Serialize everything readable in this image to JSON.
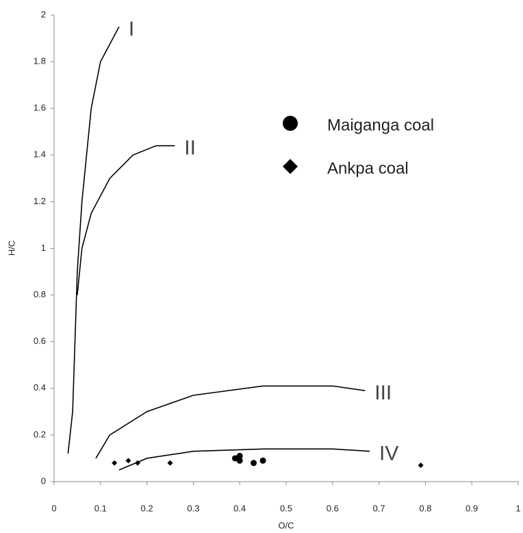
{
  "chart_data": {
    "type": "scatter",
    "x_label": "O/C",
    "y_label": "H/C",
    "xlim": [
      0,
      1
    ],
    "xticks": [
      0,
      0.1,
      0.2,
      0.3,
      0.4,
      0.5,
      0.6,
      0.7,
      0.8,
      0.9,
      1
    ],
    "ylim": [
      0,
      2
    ],
    "yticks": [
      0,
      0.2,
      0.4,
      0.6,
      0.8,
      1,
      1.2,
      1.4,
      1.6,
      1.8,
      2
    ],
    "grid": false,
    "series": [
      {
        "name": "I",
        "color": "#000000",
        "marker": null,
        "x": [
          0.03,
          0.04,
          0.045,
          0.05,
          0.06,
          0.08,
          0.1,
          0.14
        ],
        "values": [
          0.12,
          0.3,
          0.6,
          0.9,
          1.2,
          1.6,
          1.8,
          1.95
        ]
      },
      {
        "name": "II",
        "color": "#000000",
        "marker": null,
        "x": [
          0.05,
          0.06,
          0.08,
          0.12,
          0.17,
          0.22,
          0.26
        ],
        "values": [
          0.8,
          1.0,
          1.15,
          1.3,
          1.4,
          1.44,
          1.44
        ]
      },
      {
        "name": "III",
        "color": "#000000",
        "marker": null,
        "x": [
          0.09,
          0.12,
          0.2,
          0.3,
          0.45,
          0.6,
          0.67
        ],
        "values": [
          0.1,
          0.2,
          0.3,
          0.37,
          0.41,
          0.41,
          0.39
        ]
      },
      {
        "name": "IV",
        "color": "#000000",
        "marker": null,
        "x": [
          0.14,
          0.2,
          0.3,
          0.45,
          0.6,
          0.68
        ],
        "values": [
          0.05,
          0.1,
          0.13,
          0.14,
          0.14,
          0.13
        ]
      },
      {
        "name": "Maiganga coal",
        "color": "#000000",
        "marker": "circle",
        "x": [
          0.39,
          0.4,
          0.4,
          0.43,
          0.45
        ],
        "values": [
          0.1,
          0.11,
          0.09,
          0.08,
          0.09
        ]
      },
      {
        "name": "Ankpa coal",
        "color": "#000000",
        "marker": "diamond",
        "x": [
          0.13,
          0.16,
          0.18,
          0.25,
          0.79
        ],
        "values": [
          0.08,
          0.09,
          0.08,
          0.08,
          0.07
        ]
      }
    ]
  }
}
